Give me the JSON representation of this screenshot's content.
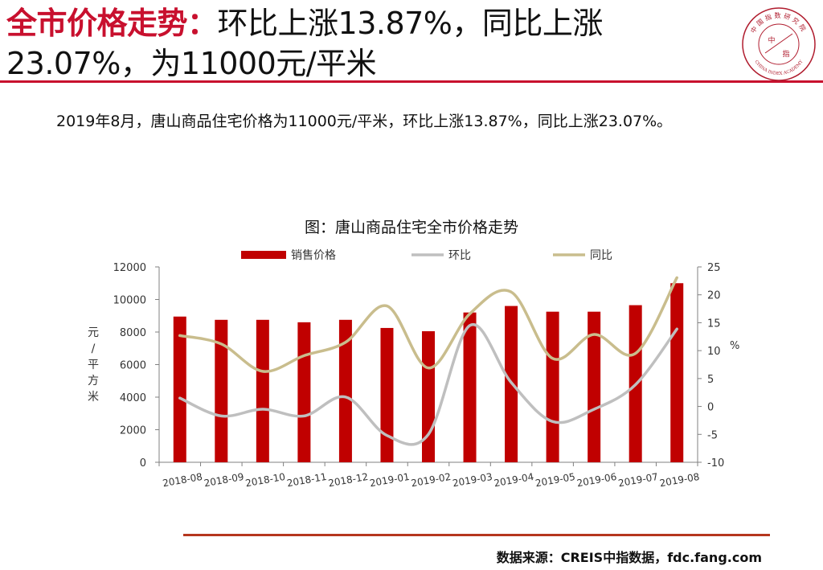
{
  "header": {
    "title_highlight": "全市价格走势：",
    "title_line1_rest": "环比上涨13.87%，同比上涨",
    "title_line2": "23.07%，为11000元/平米"
  },
  "logo": {
    "text_top": "中国指数研究院",
    "text_center_1": "中",
    "text_center_2": "指",
    "text_bottom": "CHINA INDEX ACADEMY",
    "icon": "china-index-academy-seal-icon"
  },
  "summary": "2019年8月，唐山商品住宅价格为11000元/平米，环比上涨13.87%，同比上涨23.07%。",
  "chart_data": {
    "type": "bar",
    "title": "图：唐山商品住宅全市价格走势",
    "categories": [
      "2018-08",
      "2018-09",
      "2018-10",
      "2018-11",
      "2018-12",
      "2019-01",
      "2019-02",
      "2019-03",
      "2019-04",
      "2019-05",
      "2019-06",
      "2019-07",
      "2019-08"
    ],
    "series": [
      {
        "name": "销售价格",
        "type": "bar",
        "axis": "left",
        "color": "#c00000",
        "values": [
          8950,
          8750,
          8750,
          8600,
          8750,
          8250,
          8050,
          9200,
          9600,
          9250,
          9250,
          9650,
          11000
        ]
      },
      {
        "name": "环比",
        "type": "line",
        "axis": "right",
        "color": "#bfbfbf",
        "values": [
          1.5,
          -1.7,
          -0.5,
          -1.7,
          1.7,
          -5.2,
          -5.0,
          14.5,
          4.3,
          -2.7,
          -0.5,
          3.9,
          13.87
        ]
      },
      {
        "name": "同比",
        "type": "line",
        "axis": "right",
        "color": "#c9bd8d",
        "values": [
          12.7,
          11.2,
          6.3,
          9.1,
          11.5,
          18.0,
          6.9,
          16.6,
          20.5,
          8.6,
          12.9,
          9.5,
          23.07
        ]
      }
    ],
    "y_left": {
      "label": "元/平方米",
      "range": [
        0,
        12000
      ],
      "ticks": [
        0,
        2000,
        4000,
        6000,
        8000,
        10000,
        12000
      ]
    },
    "y_right": {
      "label": "%",
      "range": [
        -10,
        25
      ],
      "ticks": [
        -10,
        -5,
        0,
        5,
        10,
        15,
        20,
        25
      ]
    },
    "legend_position": "top",
    "grid": false
  },
  "source": "数据来源：CREIS中指数据，fdc.fang.com"
}
